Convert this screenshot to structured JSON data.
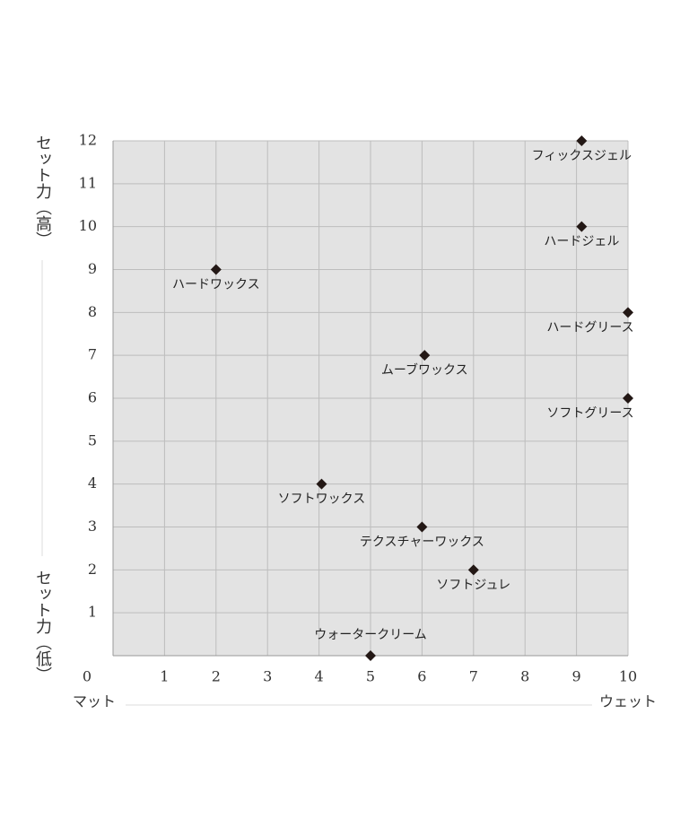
{
  "chart_data": {
    "type": "scatter",
    "y_label_high": "セット力（高）",
    "y_label_low": "セット力（低）",
    "x_label_low": "マット",
    "x_label_high": "ウェット",
    "series": [
      {
        "color": "#231815",
        "x": [
          9.1,
          9.1,
          2,
          10,
          6.05,
          10,
          4.05,
          6,
          7,
          5
        ],
        "values": [
          12,
          10,
          9,
          8,
          7,
          6,
          4,
          3,
          2,
          0
        ],
        "labels": [
          "フィックスジェル",
          "ハードジェル",
          "ハードワックス",
          "ハードグリース",
          "ムーブワックス",
          "ソフトグリース",
          "ソフトワックス",
          "テクスチャーワックス",
          "ソフトジュレ",
          "ウォータークリーム"
        ]
      }
    ],
    "xlim": [
      0,
      10
    ],
    "ylim": [
      0,
      12
    ],
    "xticks": [
      1,
      2,
      3,
      4,
      5,
      6,
      7,
      8,
      9,
      10
    ],
    "yticks": [
      0,
      1,
      2,
      3,
      4,
      5,
      6,
      7,
      8,
      9,
      10,
      11,
      12
    ],
    "grid": true
  }
}
